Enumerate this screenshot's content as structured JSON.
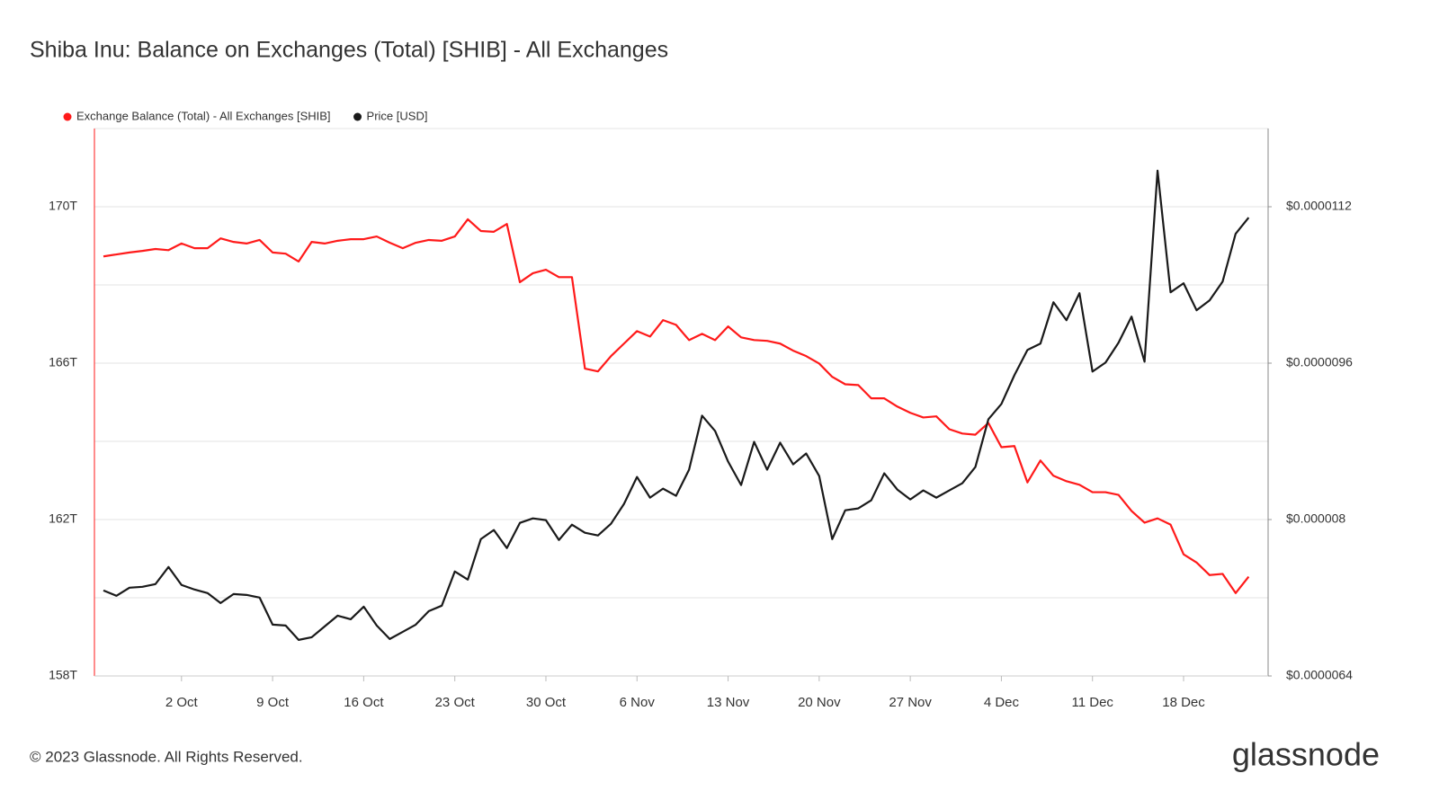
{
  "chart_data": {
    "type": "line",
    "title": "Shiba Inu: Balance on Exchanges (Total) [SHIB] - All Exchanges",
    "footer": "© 2023 Glassnode. All Rights Reserved.",
    "brand": "glassnode",
    "x": [
      "26 Sep",
      "27 Sep",
      "28 Sep",
      "29 Sep",
      "30 Sep",
      "1 Oct",
      "2 Oct",
      "3 Oct",
      "4 Oct",
      "5 Oct",
      "6 Oct",
      "7 Oct",
      "8 Oct",
      "9 Oct",
      "10 Oct",
      "11 Oct",
      "12 Oct",
      "13 Oct",
      "14 Oct",
      "15 Oct",
      "16 Oct",
      "17 Oct",
      "18 Oct",
      "19 Oct",
      "20 Oct",
      "21 Oct",
      "22 Oct",
      "23 Oct",
      "24 Oct",
      "25 Oct",
      "26 Oct",
      "27 Oct",
      "28 Oct",
      "29 Oct",
      "30 Oct",
      "31 Oct",
      "1 Nov",
      "2 Nov",
      "3 Nov",
      "4 Nov",
      "5 Nov",
      "6 Nov",
      "7 Nov",
      "8 Nov",
      "9 Nov",
      "10 Nov",
      "11 Nov",
      "12 Nov",
      "13 Nov",
      "14 Nov",
      "15 Nov",
      "16 Nov",
      "17 Nov",
      "18 Nov",
      "19 Nov",
      "20 Nov",
      "21 Nov",
      "22 Nov",
      "23 Nov",
      "24 Nov",
      "25 Nov",
      "26 Nov",
      "27 Nov",
      "28 Nov",
      "29 Nov",
      "30 Nov",
      "1 Dec",
      "2 Dec",
      "3 Dec",
      "4 Dec",
      "5 Dec",
      "6 Dec",
      "7 Dec",
      "8 Dec",
      "9 Dec",
      "10 Dec",
      "11 Dec",
      "12 Dec",
      "13 Dec",
      "14 Dec",
      "15 Dec",
      "16 Dec",
      "17 Dec",
      "18 Dec",
      "19 Dec",
      "20 Dec",
      "21 Dec",
      "22 Dec",
      "23 Dec"
    ],
    "xticks": [
      "2 Oct",
      "9 Oct",
      "16 Oct",
      "23 Oct",
      "30 Oct",
      "6 Nov",
      "13 Nov",
      "20 Nov",
      "27 Nov",
      "4 Dec",
      "11 Dec",
      "18 Dec"
    ],
    "ylim": [
      158,
      172
    ],
    "yticks": [
      {
        "value": 158,
        "label": "158T"
      },
      {
        "value": 162,
        "label": "162T"
      },
      {
        "value": 166,
        "label": "166T"
      },
      {
        "value": 170,
        "label": "170T"
      }
    ],
    "y2lim": [
      6.4e-06,
      1.2e-05
    ],
    "y2ticks": [
      {
        "value": 6.4e-06,
        "label": "$0.0000064"
      },
      {
        "value": 8e-06,
        "label": "$0.000008"
      },
      {
        "value": 9.6e-06,
        "label": "$0.0000096"
      },
      {
        "value": 1.12e-05,
        "label": "$0.0000112"
      }
    ],
    "grid": true,
    "legend": "top-left",
    "series": [
      {
        "name": "Exchange Balance (Total) - All Exchanges [SHIB]",
        "color": "#ff1a1a",
        "values": [
          168.73,
          168.78,
          168.83,
          168.87,
          168.92,
          168.89,
          169.06,
          168.94,
          168.94,
          169.19,
          169.1,
          169.06,
          169.15,
          168.83,
          168.8,
          168.6,
          169.1,
          169.06,
          169.13,
          169.17,
          169.17,
          169.24,
          169.08,
          168.94,
          169.08,
          169.15,
          169.13,
          169.24,
          169.68,
          169.38,
          169.36,
          169.56,
          168.07,
          168.3,
          168.39,
          168.2,
          168.2,
          165.86,
          165.79,
          166.18,
          166.5,
          166.82,
          166.68,
          167.1,
          166.98,
          166.59,
          166.75,
          166.59,
          166.94,
          166.66,
          166.59,
          166.57,
          166.5,
          166.32,
          166.18,
          165.99,
          165.65,
          165.46,
          165.44,
          165.1,
          165.1,
          164.89,
          164.73,
          164.61,
          164.64,
          164.31,
          164.2,
          164.17,
          164.47,
          163.85,
          163.88,
          162.95,
          163.51,
          163.12,
          162.98,
          162.89,
          162.7,
          162.7,
          162.63,
          162.22,
          161.92,
          162.03,
          161.87,
          161.11,
          160.9,
          160.58,
          160.61,
          160.12,
          160.54
        ]
      },
      {
        "name": "Price [USD]",
        "color": "#1a1a1a",
        "axis": "y2",
        "values": [
          7.275e-06,
          7.22e-06,
          7.303e-06,
          7.312e-06,
          7.34e-06,
          7.515e-06,
          7.331e-06,
          7.284e-06,
          7.248e-06,
          7.146e-06,
          7.238e-06,
          7.229e-06,
          7.202e-06,
          6.925e-06,
          6.916e-06,
          6.769e-06,
          6.796e-06,
          6.907e-06,
          7.017e-06,
          6.98e-06,
          7.109e-06,
          6.916e-06,
          6.778e-06,
          6.851e-06,
          6.925e-06,
          7.063e-06,
          7.119e-06,
          7.469e-06,
          7.386e-06,
          7.8e-06,
          7.893e-06,
          7.708e-06,
          7.966e-06,
          8.012e-06,
          7.994e-06,
          7.791e-06,
          7.948e-06,
          7.865e-06,
          7.837e-06,
          7.957e-06,
          8.16e-06,
          8.436e-06,
          8.224e-06,
          8.316e-06,
          8.243e-06,
          8.51e-06,
          9.063e-06,
          8.906e-06,
          8.593e-06,
          8.353e-06,
          8.795e-06,
          8.51e-06,
          8.786e-06,
          8.565e-06,
          8.676e-06,
          8.445e-06,
          7.8e-06,
          8.095e-06,
          8.114e-06,
          8.197e-06,
          8.473e-06,
          8.307e-06,
          8.206e-06,
          8.298e-06,
          8.224e-06,
          8.298e-06,
          8.372e-06,
          8.537e-06,
          9.026e-06,
          9.182e-06,
          9.477e-06,
          9.735e-06,
          9.8e-06,
          1.0223e-05,
          1.0039e-05,
          1.0316e-05,
          9.514e-06,
          9.606e-06,
          9.809e-06,
          1.0076e-05,
          9.615e-06,
          1.1569e-05,
          1.0325e-05,
          1.0417e-05,
          1.0141e-05,
          1.0242e-05,
          1.0435e-05,
          1.0924e-05,
          1.1089e-05
        ]
      }
    ]
  }
}
